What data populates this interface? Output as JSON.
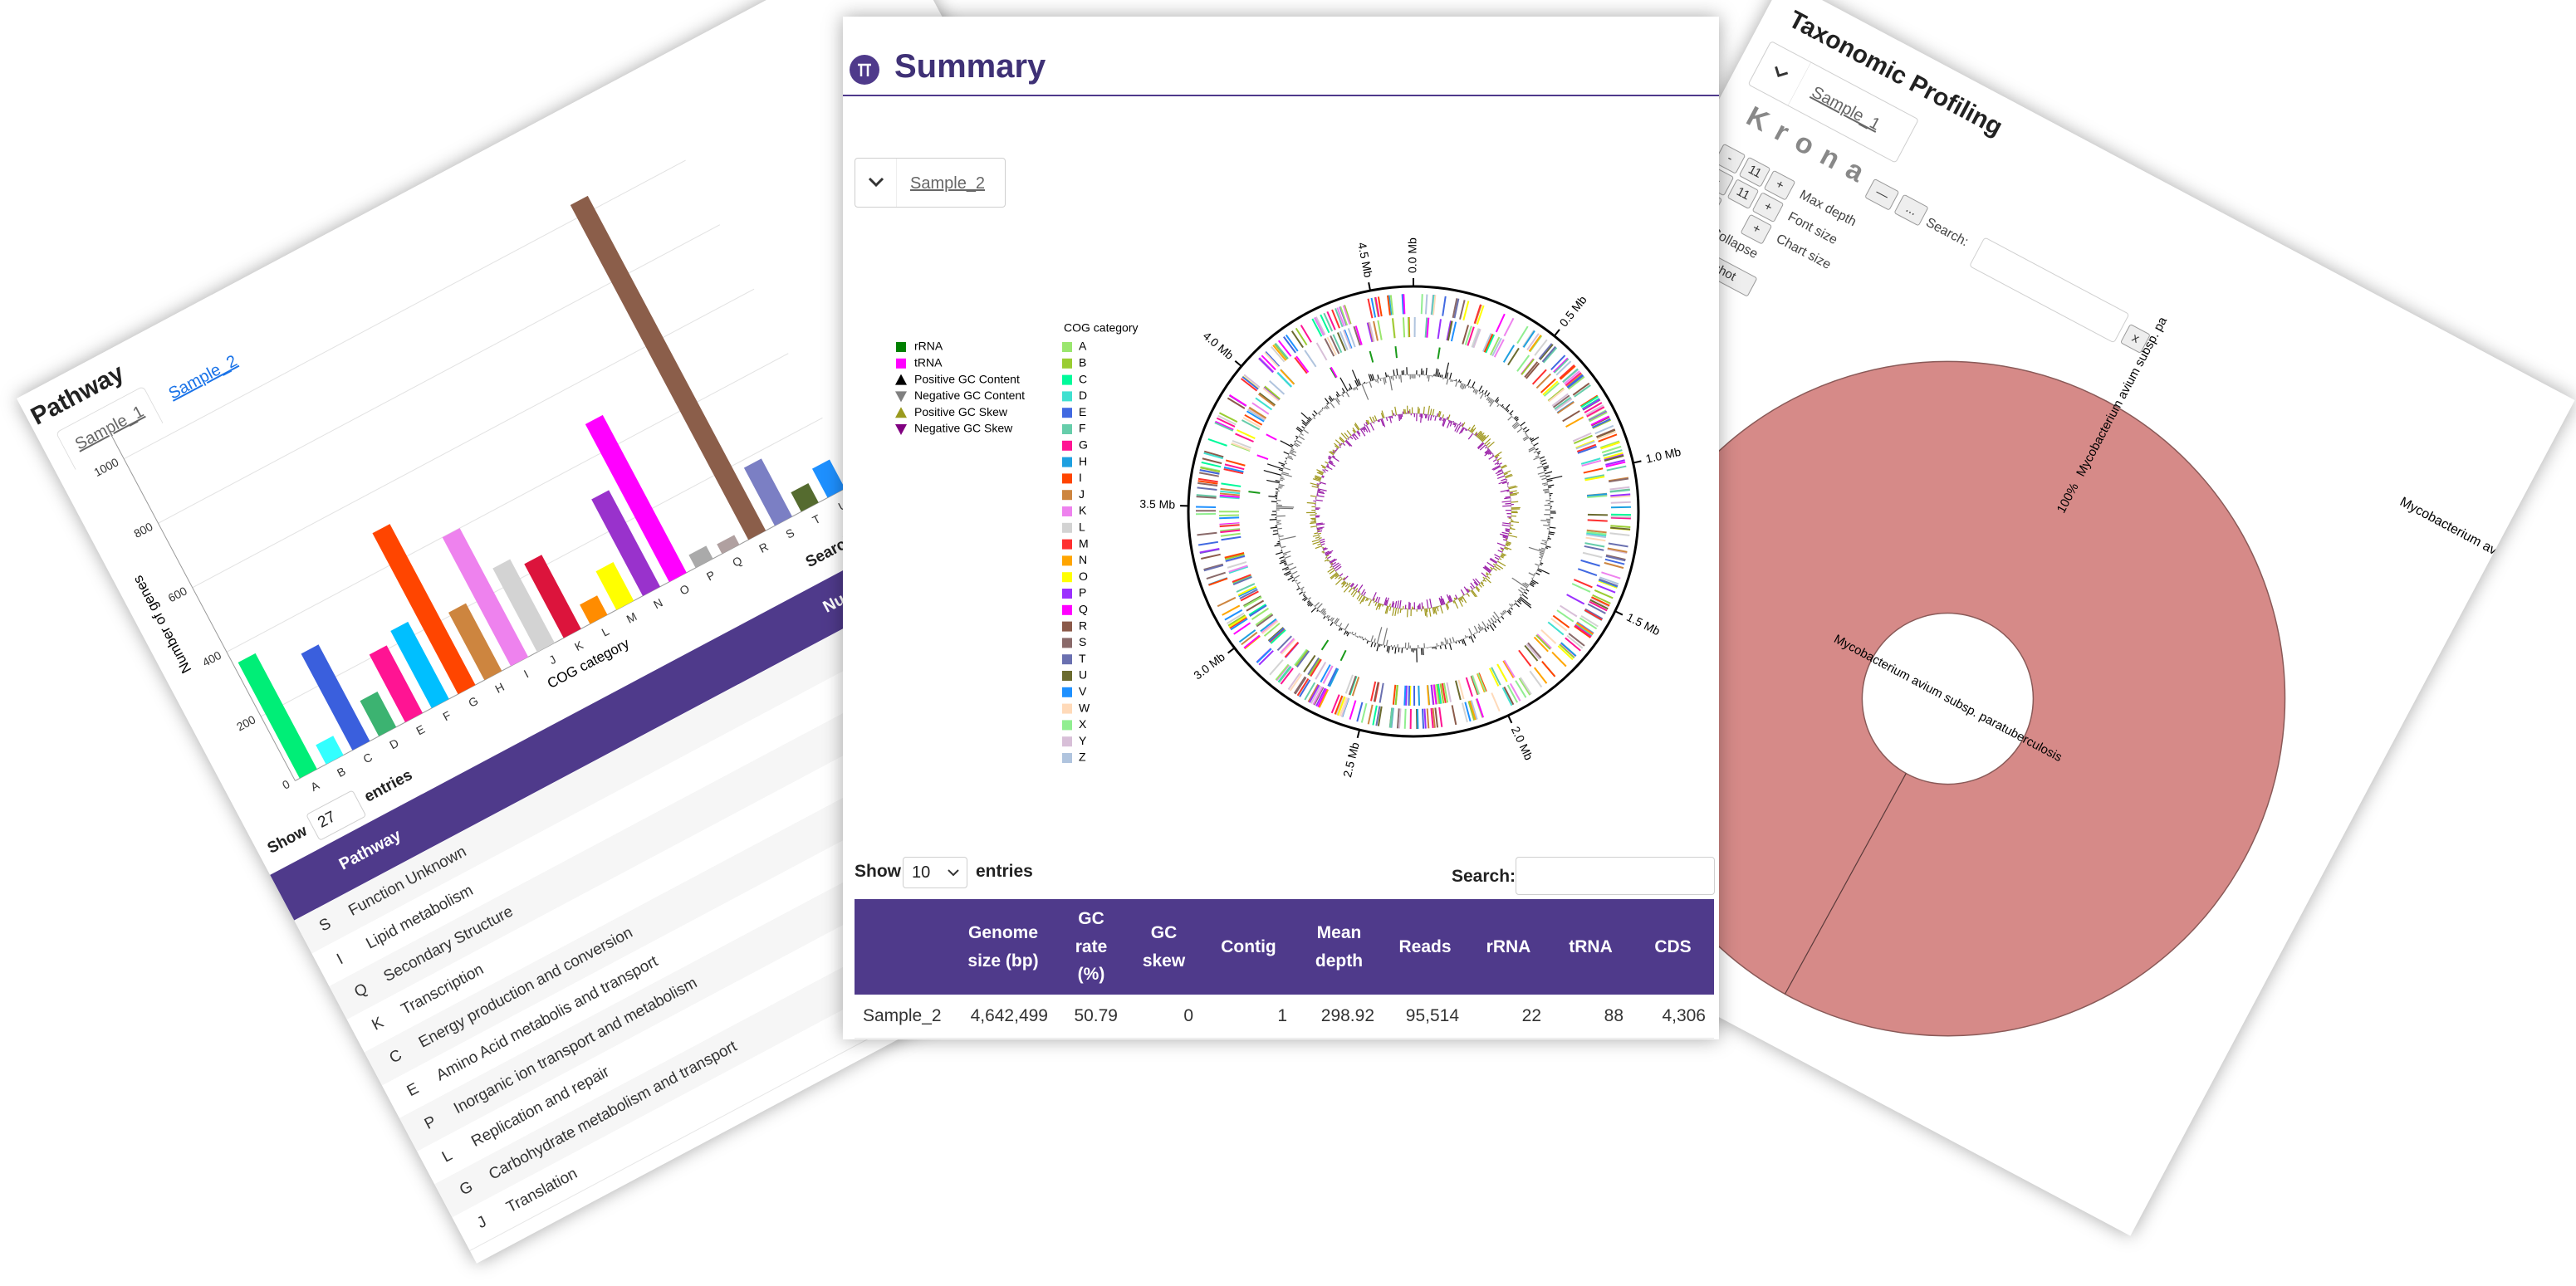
{
  "chart_data": {
    "type": "bar",
    "x_label": "COG category",
    "y_label": "Number of genes",
    "categories": [
      "A",
      "B",
      "C",
      "D",
      "E",
      "F",
      "G",
      "H",
      "I",
      "J",
      "K",
      "L",
      "M",
      "N",
      "O",
      "P",
      "Q",
      "R",
      "S",
      "T",
      "U"
    ],
    "values": [
      360,
      60,
      300,
      110,
      210,
      240,
      500,
      210,
      400,
      260,
      230,
      60,
      120,
      300,
      490,
      40,
      30,
      1040,
      180,
      60,
      90
    ],
    "colors": [
      "#00ee77",
      "#33ffff",
      "#3a5fdd",
      "#3cb371",
      "#ff1493",
      "#00bfff",
      "#ff4500",
      "#cd853f",
      "#ee82ee",
      "#d3d3d3",
      "#dc143c",
      "#ff8c00",
      "#ffff00",
      "#9932cc",
      "#ff00ff",
      "#aaaaaa",
      "#b0a0a0",
      "#8b5e4a",
      "#7b7fc4",
      "#556b2f",
      "#1e90ff"
    ],
    "ylim": [
      0,
      1100
    ],
    "yticks": [
      0,
      200,
      400,
      600,
      800,
      1000
    ],
    "grid": true
  },
  "pathway_panel": {
    "title": "Pathway",
    "tabs": [
      "Sample_1",
      "Sample_2"
    ],
    "show": "Show",
    "entries_count": "27",
    "entries": "entries",
    "search": "Search:",
    "table": {
      "headers": [
        "Pathway",
        "Nu"
      ],
      "rows": [
        [
          "S",
          "Function Unknown"
        ],
        [
          "I",
          "Lipid metabolism"
        ],
        [
          "Q",
          "Secondary Structure"
        ],
        [
          "K",
          "Transcription"
        ],
        [
          "C",
          "Energy production and conversion"
        ],
        [
          "E",
          "Amino Acid metabolis and transport"
        ],
        [
          "P",
          "Inorganic ion transport and metabolism"
        ],
        [
          "L",
          "Replication and repair"
        ],
        [
          "G",
          "Carbohydrate metabolism and transport"
        ],
        [
          "J",
          "Translation"
        ]
      ]
    }
  },
  "summary_panel": {
    "title": "Summary",
    "sample": "Sample_2",
    "genome_plot": {
      "xlim": [
        0,
        4.642499
      ],
      "ticks": [
        {
          "value": 0,
          "label": "0.0 Mb"
        },
        {
          "value": 0.5,
          "label": "0.5 Mb"
        },
        {
          "value": 1.0,
          "label": "1.0 Mb"
        },
        {
          "value": 1.5,
          "label": "1.5 Mb"
        },
        {
          "value": 2.0,
          "label": "2.0 Mb"
        },
        {
          "value": 2.5,
          "label": "2.5 Mb"
        },
        {
          "value": 3.0,
          "label": "3.0 Mb"
        },
        {
          "value": 3.5,
          "label": "3.5 Mb"
        },
        {
          "value": 4.0,
          "label": "4.0 Mb"
        },
        {
          "value": 4.5,
          "label": "4.5 Mb"
        }
      ],
      "features_legend": [
        {
          "name": "rRNA",
          "color": "#008000",
          "marker": "square"
        },
        {
          "name": "tRNA",
          "color": "#ff00ff",
          "marker": "square"
        },
        {
          "name": "Positive GC Content",
          "color": "#000000",
          "marker": "triangle-up"
        },
        {
          "name": "Negative GC Content",
          "color": "#808080",
          "marker": "triangle-down"
        },
        {
          "name": "Positive GC Skew",
          "color": "#9a9a1e",
          "marker": "triangle-up"
        },
        {
          "name": "Negative GC Skew",
          "color": "#800080",
          "marker": "triangle-down"
        }
      ],
      "cog_title": "COG category",
      "cog_legend": [
        {
          "name": "A",
          "color": "#9ae66e"
        },
        {
          "name": "B",
          "color": "#9acd32"
        },
        {
          "name": "C",
          "color": "#00fa9a"
        },
        {
          "name": "D",
          "color": "#40e0d0"
        },
        {
          "name": "E",
          "color": "#4169e1"
        },
        {
          "name": "F",
          "color": "#66cdaa"
        },
        {
          "name": "G",
          "color": "#ff1493"
        },
        {
          "name": "H",
          "color": "#1ea0e0"
        },
        {
          "name": "I",
          "color": "#ff4500"
        },
        {
          "name": "J",
          "color": "#cd853f"
        },
        {
          "name": "K",
          "color": "#ee82ee"
        },
        {
          "name": "L",
          "color": "#d3d3d3"
        },
        {
          "name": "M",
          "color": "#ff3030"
        },
        {
          "name": "N",
          "color": "#ffa500"
        },
        {
          "name": "O",
          "color": "#ffff00"
        },
        {
          "name": "P",
          "color": "#9b30ff"
        },
        {
          "name": "Q",
          "color": "#ff00ff"
        },
        {
          "name": "R",
          "color": "#8b5a4a"
        },
        {
          "name": "S",
          "color": "#8a6a6a"
        },
        {
          "name": "T",
          "color": "#6a70b0"
        },
        {
          "name": "U",
          "color": "#6b6b2f"
        },
        {
          "name": "V",
          "color": "#1e90ff"
        },
        {
          "name": "W",
          "color": "#ffdab9"
        },
        {
          "name": "X",
          "color": "#90ee90"
        },
        {
          "name": "Y",
          "color": "#d8bfd8"
        },
        {
          "name": "Z",
          "color": "#b0c4de"
        }
      ]
    },
    "show": "Show",
    "entries_count": "10",
    "entries": "entries",
    "search": "Search:",
    "table": {
      "headers": [
        "Genome size (bp)",
        "GC rate (%)",
        "GC skew",
        "Contig",
        "Mean depth",
        "Reads",
        "rRNA",
        "tRNA",
        "CDS"
      ],
      "rows": [
        [
          "Sample_2",
          "4,642,499",
          "50.79",
          "0",
          "1",
          "298.92",
          "95,514",
          "22",
          "88",
          "4,306"
        ]
      ]
    }
  },
  "taxonomy_panel": {
    "title": "Taxonomic Profiling",
    "sample": "Sample_1",
    "logo": "Krona",
    "logo_buttons": [
      "—",
      "..."
    ],
    "controls": [
      {
        "buttons": [
          "-",
          "11",
          "+"
        ],
        "label": "Max depth"
      },
      {
        "buttons": [
          "-",
          "11",
          "+"
        ],
        "label": "Font size"
      },
      {
        "buttons": [
          "-",
          "+"
        ],
        "label": "Chart size"
      }
    ],
    "collapse": "Collapse",
    "snapshot": "Snapshot",
    "search": "Search:",
    "clear": "x",
    "wedge_percent": "100%",
    "wedge_label": "Mycobacterium avium subsp. pa",
    "center_label": "Mycobacterium avium subsp. paratuberculosis",
    "side_label": "Mycobacterium av"
  }
}
